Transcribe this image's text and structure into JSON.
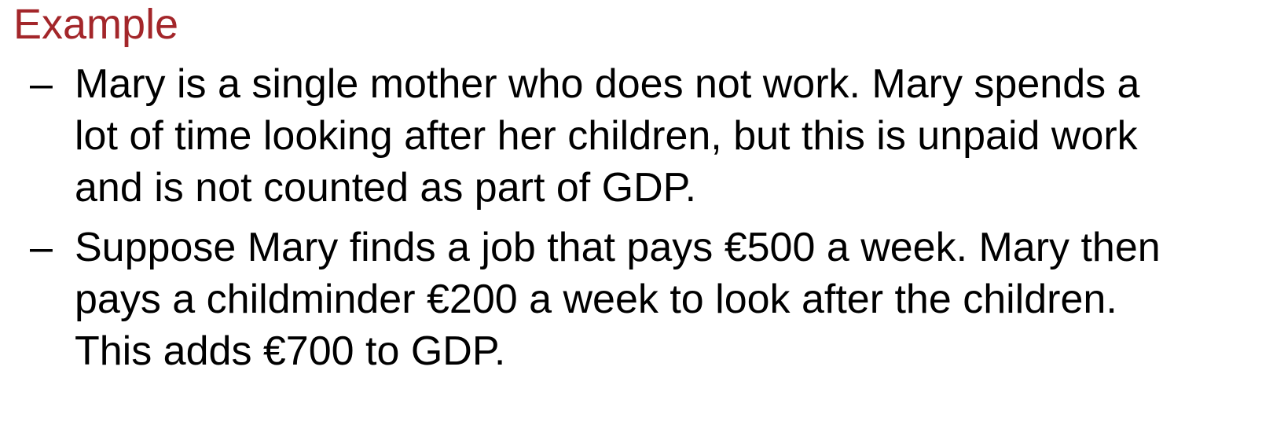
{
  "title": "Example",
  "bullet_marker": "–",
  "bullets": [
    {
      "lines": [
        "Mary is a single mother who does not work. Mary spends a",
        "lot of time looking after her children, but this is unpaid work",
        "and is not counted as part of GDP."
      ]
    },
    {
      "lines": [
        "Suppose Mary finds a job that pays €500 a week. Mary then",
        "pays a childminder €200 a week to look after the children.",
        "This adds €700 to GDP."
      ]
    }
  ],
  "colors": {
    "title": "#a3262a",
    "text": "#000000",
    "background": "#ffffff"
  }
}
